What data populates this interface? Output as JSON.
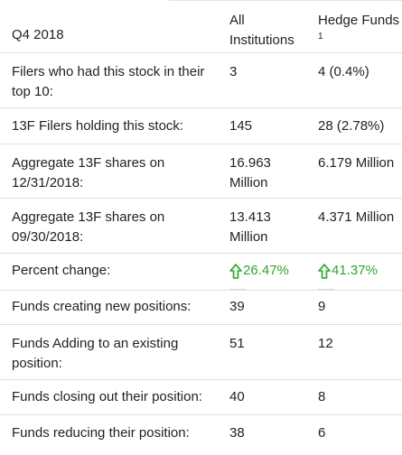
{
  "header": {
    "quarter": "Q4 2018",
    "col_all": "All Institutions",
    "col_hedge": "Hedge Funds",
    "hedge_footnote": "1"
  },
  "rows": [
    {
      "label": "Filers who had this stock in their top 10:",
      "all": "3",
      "hedge": "4 (0.4%)"
    },
    {
      "label": "13F Filers holding this stock:",
      "all": "145",
      "hedge": "28 (2.78%)"
    },
    {
      "label": "Aggregate 13F shares on 12/31/2018:",
      "all": "16.963 Million",
      "hedge": "6.179 Million"
    },
    {
      "label": "Aggregate 13F shares on 09/30/2018:",
      "all": "13.413 Million",
      "hedge": "4.371 Million"
    },
    {
      "label": "Percent change:",
      "all": "26.47%",
      "hedge": "41.37%"
    },
    {
      "label": "Funds creating new positions:",
      "all": "39",
      "hedge": "9"
    },
    {
      "label": "Funds Adding to an existing position:",
      "all": "51",
      "hedge": "12"
    },
    {
      "label": "Funds closing out their position:",
      "all": "40",
      "hedge": "8"
    },
    {
      "label": "Funds reducing their position:",
      "all": "38",
      "hedge": "6"
    }
  ],
  "colors": {
    "up": "#2ea52e",
    "text": "#222222",
    "divider": "#e0e0e0"
  },
  "icons": {
    "trend": "up-arrow-icon"
  }
}
